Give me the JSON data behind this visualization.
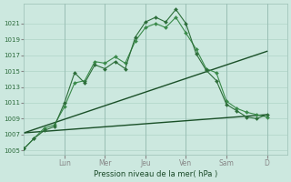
{
  "bg_color": "#cce8df",
  "grid_color": "#b0d4c8",
  "ylabel": "Pression niveau de la mer( hPa )",
  "ylim": [
    1004.5,
    1023.5
  ],
  "yticks": [
    1005,
    1007,
    1009,
    1011,
    1013,
    1015,
    1017,
    1019,
    1021
  ],
  "day_labels": [
    "Lun",
    "Mer",
    "Jeu",
    "Ven",
    "Sam",
    "D"
  ],
  "day_positions": [
    24,
    48,
    72,
    96,
    120,
    144
  ],
  "xlim": [
    0,
    156
  ],
  "series1_color": "#2d6e3a",
  "series2_color": "#3a8a4a",
  "series3_color": "#1a5028",
  "series4_color": "#1a5028",
  "series1": {
    "x": [
      0,
      6,
      12,
      18,
      24,
      30,
      36,
      42,
      48,
      54,
      60,
      66,
      72,
      78,
      84,
      90,
      96,
      102,
      108,
      114,
      120,
      126,
      132,
      138,
      144
    ],
    "y": [
      1005.2,
      1006.5,
      1007.5,
      1008.0,
      1011.0,
      1014.8,
      1013.5,
      1015.8,
      1015.3,
      1016.2,
      1015.3,
      1019.3,
      1021.2,
      1021.8,
      1021.2,
      1022.8,
      1021.0,
      1017.2,
      1015.1,
      1013.8,
      1010.8,
      1010.0,
      1009.2,
      1009.0,
      1009.5
    ]
  },
  "series2": {
    "x": [
      0,
      6,
      12,
      18,
      24,
      30,
      36,
      42,
      48,
      54,
      60,
      66,
      72,
      78,
      84,
      90,
      96,
      102,
      108,
      114,
      120,
      126,
      132,
      138,
      144
    ],
    "y": [
      1005.2,
      1006.5,
      1007.8,
      1008.2,
      1010.5,
      1013.5,
      1013.8,
      1016.2,
      1016.0,
      1016.8,
      1016.0,
      1018.8,
      1020.5,
      1021.0,
      1020.5,
      1021.8,
      1019.8,
      1017.8,
      1015.3,
      1014.8,
      1011.2,
      1010.3,
      1009.8,
      1009.5,
      1009.2
    ]
  },
  "series3": {
    "x": [
      0,
      144
    ],
    "y": [
      1007.2,
      1017.5
    ]
  },
  "series4": {
    "x": [
      0,
      144
    ],
    "y": [
      1007.2,
      1009.5
    ]
  }
}
